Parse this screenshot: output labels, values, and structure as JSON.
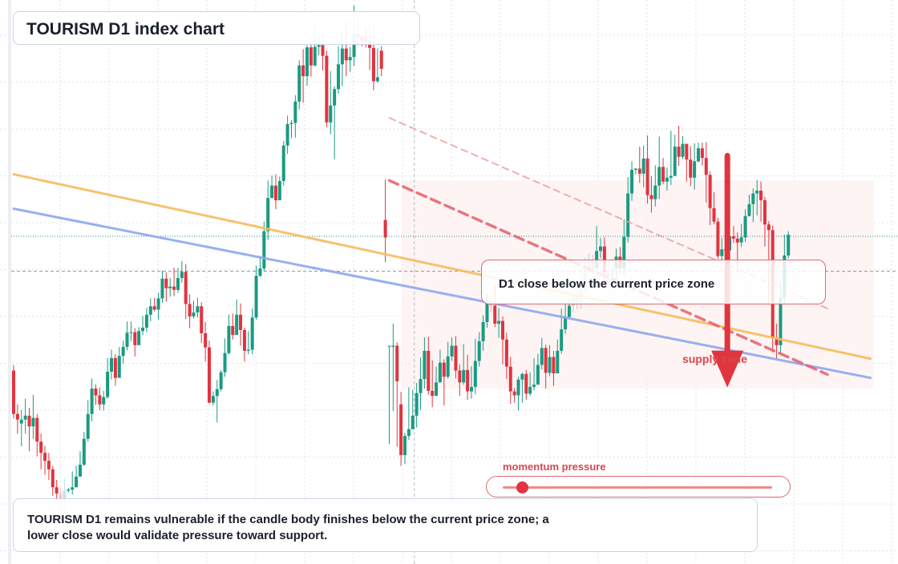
{
  "title": "TOURISM D1 index chart",
  "callout": "D1 close below the current price zone",
  "summary": "TOURISM D1 remains vulnerable if the candle body finishes below the current price zone; a lower close would validate pressure toward support.",
  "zone_label": "supply zone",
  "momentum": {
    "label": "momentum pressure",
    "level": 0.07
  },
  "colors": {
    "up": "#1a9a82",
    "down": "#e0343f",
    "orange_line": "#f5bd5e",
    "blue_line": "#8da8ef",
    "accent": "#d9464f"
  },
  "chart_data": {
    "type": "candlestick",
    "title": "TOURISM D1 index chart",
    "xlabel": "",
    "ylabel": "",
    "grid": true,
    "legend": "none",
    "note": "Index levels are not labelled; values are relative (top of chart = 100).",
    "ylim": [
      0,
      100
    ],
    "candles": [
      [
        34.3,
        26.6,
        35.3,
        25.8
      ],
      [
        26.6,
        25.6,
        28.3,
        23.1
      ],
      [
        24.9,
        25.6,
        27.3,
        20.9
      ],
      [
        25.6,
        26.3,
        29.3,
        23.1
      ],
      [
        26.3,
        24.4,
        27.7,
        20.0
      ],
      [
        24.4,
        25.9,
        30.0,
        22.2
      ],
      [
        25.9,
        21.7,
        26.6,
        19.1
      ],
      [
        21.7,
        19.7,
        23.1,
        16.8
      ],
      [
        19.7,
        18.3,
        20.9,
        15.8
      ],
      [
        18.3,
        16.8,
        19.7,
        14.9
      ],
      [
        16.8,
        13.6,
        17.4,
        12.1
      ],
      [
        13.6,
        12.5,
        14.9,
        11.3
      ],
      [
        12.5,
        7.3,
        13.6,
        5.2
      ],
      [
        7.3,
        13.0,
        15.1,
        11.0
      ],
      [
        13.0,
        13.2,
        13.5,
        12.7
      ],
      [
        13.2,
        13.6,
        16.4,
        12.3
      ],
      [
        13.6,
        15.5,
        17.4,
        13.6
      ],
      [
        15.5,
        17.6,
        20.0,
        15.5
      ],
      [
        17.6,
        22.2,
        23.4,
        17.4
      ],
      [
        22.2,
        26.6,
        29.1,
        21.7
      ],
      [
        26.6,
        31.1,
        32.9,
        25.3
      ],
      [
        31.1,
        29.9,
        31.8,
        28.2
      ],
      [
        29.9,
        28.3,
        31.3,
        27.3
      ],
      [
        28.3,
        29.6,
        30.7,
        27.2
      ],
      [
        29.6,
        34.1,
        36.5,
        29.3
      ],
      [
        34.1,
        36.5,
        38.0,
        32.7
      ],
      [
        36.5,
        33.0,
        37.2,
        31.6
      ],
      [
        33.0,
        36.9,
        38.5,
        35.1
      ],
      [
        36.9,
        38.5,
        39.6,
        35.5
      ],
      [
        38.5,
        41.0,
        43.0,
        37.9
      ],
      [
        41.0,
        41.1,
        43.0,
        39.5
      ],
      [
        41.1,
        38.8,
        41.8,
        36.8
      ],
      [
        38.8,
        41.3,
        42.0,
        39.6
      ],
      [
        41.3,
        41.9,
        44.0,
        40.6
      ],
      [
        41.9,
        44.2,
        45.4,
        41.1
      ],
      [
        44.2,
        45.7,
        47.1,
        43.0
      ],
      [
        45.7,
        45.1,
        47.2,
        44.8
      ],
      [
        45.1,
        47.1,
        48.1,
        43.3
      ],
      [
        47.1,
        50.6,
        52.0,
        46.3
      ],
      [
        50.6,
        48.9,
        51.7,
        46.5
      ],
      [
        48.9,
        49.2,
        50.7,
        47.4
      ],
      [
        49.2,
        48.6,
        52.5,
        47.5
      ],
      [
        48.6,
        50.7,
        52.5,
        48.1
      ],
      [
        50.7,
        51.8,
        53.7,
        49.9
      ],
      [
        51.8,
        46.1,
        53.2,
        43.4
      ],
      [
        46.1,
        43.9,
        47.8,
        41.8
      ],
      [
        43.9,
        44.6,
        46.7,
        43.5
      ],
      [
        44.6,
        45.7,
        47.2,
        43.7
      ],
      [
        45.7,
        40.9,
        46.4,
        39.2
      ],
      [
        40.9,
        38.4,
        42.9,
        35.9
      ],
      [
        38.4,
        28.6,
        39.6,
        28.5
      ],
      [
        28.6,
        29.8,
        30.6,
        28.1
      ],
      [
        29.8,
        31.0,
        32.6,
        25.1
      ],
      [
        31.0,
        34.0,
        34.4,
        30.6
      ],
      [
        34.0,
        37.4,
        40.0,
        33.2
      ],
      [
        37.4,
        42.2,
        44.2,
        37.1
      ],
      [
        42.2,
        40.6,
        44.4,
        39.8
      ],
      [
        40.6,
        44.2,
        46.9,
        43.2
      ],
      [
        44.2,
        41.5,
        46.2,
        38.7
      ],
      [
        41.5,
        37.8,
        41.9,
        35.9
      ],
      [
        37.8,
        38.0,
        41.3,
        37.2
      ],
      [
        38.0,
        43.7,
        45.3,
        37.2
      ],
      [
        43.7,
        51.1,
        52.9,
        43.3
      ],
      [
        51.1,
        52.4,
        54.6,
        50.9
      ],
      [
        52.4,
        59.0,
        60.7,
        51.9
      ],
      [
        59.0,
        64.9,
        68.0,
        57.5
      ],
      [
        64.9,
        67.1,
        68.9,
        64.8
      ],
      [
        67.1,
        64.5,
        69.1,
        62.9
      ],
      [
        64.5,
        67.9,
        68.7,
        64.5
      ],
      [
        67.9,
        74.2,
        75.0,
        67.1
      ],
      [
        74.2,
        78.0,
        79.5,
        72.7
      ],
      [
        78.0,
        78.2,
        78.7,
        75.5
      ],
      [
        78.2,
        82.0,
        83.1,
        75.6
      ],
      [
        82.0,
        88.4,
        89.3,
        80.6
      ],
      [
        88.4,
        86.5,
        91.3,
        81.8
      ],
      [
        86.5,
        91.6,
        92.0,
        84.8
      ],
      [
        91.6,
        88.4,
        93.2,
        86.4
      ],
      [
        88.4,
        91.7,
        95.4,
        88.2
      ],
      [
        91.7,
        92.0,
        93.7,
        90.2
      ],
      [
        92.0,
        90.1,
        94.0,
        87.5
      ],
      [
        90.1,
        78.3,
        91.0,
        77.4
      ],
      [
        78.3,
        81.3,
        87.4,
        76.2
      ],
      [
        81.3,
        84.2,
        84.7,
        71.8
      ],
      [
        84.2,
        88.6,
        91.8,
        83.4
      ],
      [
        88.6,
        91.4,
        94.8,
        84.7
      ],
      [
        91.4,
        89.3,
        96.2,
        86.5
      ],
      [
        89.3,
        89.9,
        91.7,
        87.3
      ],
      [
        89.9,
        94.0,
        99.0,
        88.3
      ],
      [
        94.0,
        93.4,
        97.0,
        92.0
      ],
      [
        93.4,
        92.6,
        93.7,
        91.8
      ],
      [
        93.4,
        92.6,
        95.1,
        91.6
      ],
      [
        92.6,
        91.5,
        95.4,
        87.6
      ],
      [
        91.5,
        85.6,
        96.1,
        84.0
      ],
      [
        85.6,
        86.3,
        91.4,
        85.3
      ],
      [
        91.0,
        87.8,
        91.8,
        86.5
      ],
      [
        61.0,
        57.9,
        68.2,
        53.5
      ],
      [
        38.7,
        38.7,
        38.7,
        21.3
      ],
      [
        38.5,
        38.7,
        42.6,
        27.1
      ],
      [
        38.7,
        32.4,
        39.3,
        20.8
      ],
      [
        28.3,
        19.3,
        30.5,
        17.4
      ],
      [
        19.3,
        22.7,
        23.2,
        17.7
      ],
      [
        22.7,
        23.9,
        31.3,
        22.0
      ],
      [
        23.9,
        26.3,
        30.9,
        23.9
      ],
      [
        26.3,
        30.3,
        32.1,
        24.2
      ],
      [
        30.3,
        32.8,
        36.6,
        27.3
      ],
      [
        32.8,
        37.8,
        40.2,
        31.1
      ],
      [
        37.8,
        30.7,
        40.3,
        30.0
      ],
      [
        30.7,
        29.8,
        36.1,
        27.8
      ],
      [
        29.8,
        32.2,
        35.0,
        31.2
      ],
      [
        32.2,
        35.7,
        38.0,
        32.6
      ],
      [
        35.7,
        33.2,
        36.3,
        28.1
      ],
      [
        33.2,
        36.8,
        39.4,
        32.9
      ],
      [
        36.8,
        38.7,
        40.2,
        36.0
      ],
      [
        38.7,
        34.3,
        40.4,
        32.9
      ],
      [
        34.3,
        32.2,
        35.4,
        29.8
      ],
      [
        32.2,
        34.4,
        39.0,
        31.8
      ],
      [
        34.4,
        30.6,
        37.1,
        29.1
      ],
      [
        30.6,
        31.4,
        35.1,
        29.3
      ],
      [
        31.4,
        36.0,
        39.9,
        30.1
      ],
      [
        36.0,
        39.5,
        41.1,
        35.0
      ],
      [
        39.5,
        42.9,
        44.1,
        37.8
      ],
      [
        42.9,
        46.7,
        47.9,
        41.9
      ],
      [
        46.7,
        45.8,
        48.7,
        44.6
      ],
      [
        45.8,
        42.6,
        49.4,
        42.0
      ],
      [
        42.6,
        43.1,
        45.4,
        40.1
      ],
      [
        43.1,
        39.8,
        43.9,
        35.4
      ],
      [
        39.8,
        35.0,
        41.0,
        32.8
      ],
      [
        35.0,
        30.6,
        36.7,
        28.4
      ],
      [
        30.6,
        29.9,
        31.2,
        28.6
      ],
      [
        29.9,
        32.7,
        33.2,
        27.2
      ],
      [
        32.7,
        33.7,
        33.9,
        28.6
      ],
      [
        33.7,
        30.2,
        34.4,
        29.1
      ],
      [
        30.2,
        31.4,
        34.0,
        29.8
      ],
      [
        31.4,
        31.8,
        36.5,
        30.8
      ],
      [
        31.8,
        35.3,
        37.3,
        34.6
      ],
      [
        35.3,
        38.3,
        40.1,
        34.5
      ],
      [
        38.3,
        33.9,
        38.9,
        31.1
      ],
      [
        33.9,
        36.7,
        38.8,
        33.3
      ],
      [
        36.7,
        33.8,
        37.8,
        31.6
      ],
      [
        33.8,
        37.8,
        39.8,
        36.6
      ],
      [
        37.8,
        41.6,
        45.3,
        37.3
      ],
      [
        41.6,
        43.8,
        46.3,
        40.8
      ],
      [
        43.8,
        45.8,
        46.9,
        43.5
      ],
      [
        45.8,
        47.6,
        48.1,
        44.6
      ],
      [
        47.6,
        46.2,
        48.7,
        45.2
      ],
      [
        46.2,
        48.6,
        52.7,
        45.2
      ],
      [
        48.6,
        51.8,
        54.3,
        48.3
      ],
      [
        51.8,
        53.7,
        55.1,
        50.2
      ],
      [
        53.7,
        52.4,
        54.8,
        50.1
      ],
      [
        52.4,
        55.5,
        59.9,
        52.2
      ],
      [
        55.5,
        56.3,
        57.8,
        54.2
      ],
      [
        56.3,
        51.7,
        57.9,
        50.2
      ],
      [
        51.7,
        50.2,
        53.2,
        48.4
      ],
      [
        50.2,
        52.4,
        54.1,
        51.6
      ],
      [
        52.4,
        54.5,
        55.9,
        50.1
      ],
      [
        54.5,
        52.4,
        56.2,
        51.4
      ],
      [
        52.4,
        58.0,
        61.1,
        51.3
      ],
      [
        58.0,
        65.7,
        68.6,
        57.0
      ],
      [
        65.7,
        69.9,
        71.4,
        64.4
      ],
      [
        69.9,
        70.1,
        70.2,
        69.1
      ],
      [
        70.1,
        69.2,
        74.0,
        67.6
      ],
      [
        69.2,
        71.9,
        74.2,
        66.8
      ],
      [
        71.9,
        65.4,
        76.0,
        63.9
      ],
      [
        65.4,
        64.7,
        68.8,
        62.3
      ],
      [
        64.7,
        67.1,
        70.7,
        63.4
      ],
      [
        67.1,
        70.4,
        75.8,
        64.7
      ],
      [
        70.4,
        67.8,
        72.0,
        67.3
      ],
      [
        67.8,
        68.5,
        70.3,
        66.2
      ],
      [
        68.5,
        68.8,
        76.8,
        67.2
      ],
      [
        68.8,
        74.0,
        76.1,
        73.2
      ],
      [
        74.0,
        72.2,
        77.7,
        70.6
      ],
      [
        72.2,
        74.5,
        75.9,
        71.8
      ],
      [
        74.5,
        71.7,
        74.5,
        67.8
      ],
      [
        71.7,
        68.5,
        74.1,
        67.0
      ],
      [
        68.5,
        71.4,
        74.6,
        66.4
      ],
      [
        71.4,
        73.7,
        74.7,
        71.2
      ],
      [
        73.7,
        72.0,
        74.7,
        70.6
      ],
      [
        72.0,
        69.0,
        74.8,
        64.1
      ],
      [
        69.0,
        63.1,
        69.6,
        60.1
      ],
      [
        63.1,
        60.7,
        65.9,
        60.2
      ],
      [
        60.7,
        54.6,
        61.4,
        54.1
      ],
      [
        54.6,
        55.8,
        57.8,
        53.4
      ],
      [
        55.8,
        55.6,
        57.8,
        54.5
      ],
      [
        55.6,
        58.1,
        59.5,
        55.1
      ],
      [
        58.1,
        57.7,
        59.9,
        56.9
      ],
      [
        57.7,
        57.0,
        58.8,
        51.8
      ],
      [
        57.0,
        57.9,
        60.3,
        56.2
      ],
      [
        57.9,
        61.7,
        62.9,
        57.1
      ],
      [
        61.7,
        63.8,
        65.5,
        61.6
      ],
      [
        63.8,
        65.7,
        66.6,
        60.6
      ],
      [
        65.7,
        66.2,
        68.1,
        61.8
      ],
      [
        66.2,
        64.5,
        67.8,
        60.7
      ],
      [
        64.5,
        60.2,
        65.1,
        56.3
      ],
      [
        60.2,
        59.2,
        60.8,
        46.0
      ],
      [
        59.2,
        40.0,
        60.0,
        37.5
      ],
      [
        40.0,
        38.8,
        42.6,
        36.4
      ],
      [
        38.8,
        47.2,
        50.0,
        37.3
      ],
      [
        47.2,
        54.7,
        58.4,
        46.0
      ],
      [
        54.7,
        58.4,
        59.0,
        54.2
      ]
    ],
    "trendlines": [
      {
        "from": [
          0,
          69.1
        ],
        "to": [
          219,
          36.4
        ]
      },
      {
        "from": [
          0,
          63.0
        ],
        "to": [
          219,
          33.0
        ]
      },
      {
        "from": [
          96,
          79.1
        ],
        "to": [
          209,
          45.0
        ]
      },
      {
        "from": [
          96,
          68.0
        ],
        "to": [
          208,
          33.6
        ]
      }
    ],
    "reference_levels": [
      58.1,
      51.9
    ],
    "crosshair_index": 102,
    "annotations": [
      {
        "text": "supply zone",
        "from_index": 100,
        "to_index": 219,
        "low": 31.1,
        "high": 68.0
      },
      {
        "text": "D1 close below the current price zone",
        "type": "arrow-down",
        "index": 182,
        "from": 72.4,
        "to": 31.3
      }
    ]
  }
}
